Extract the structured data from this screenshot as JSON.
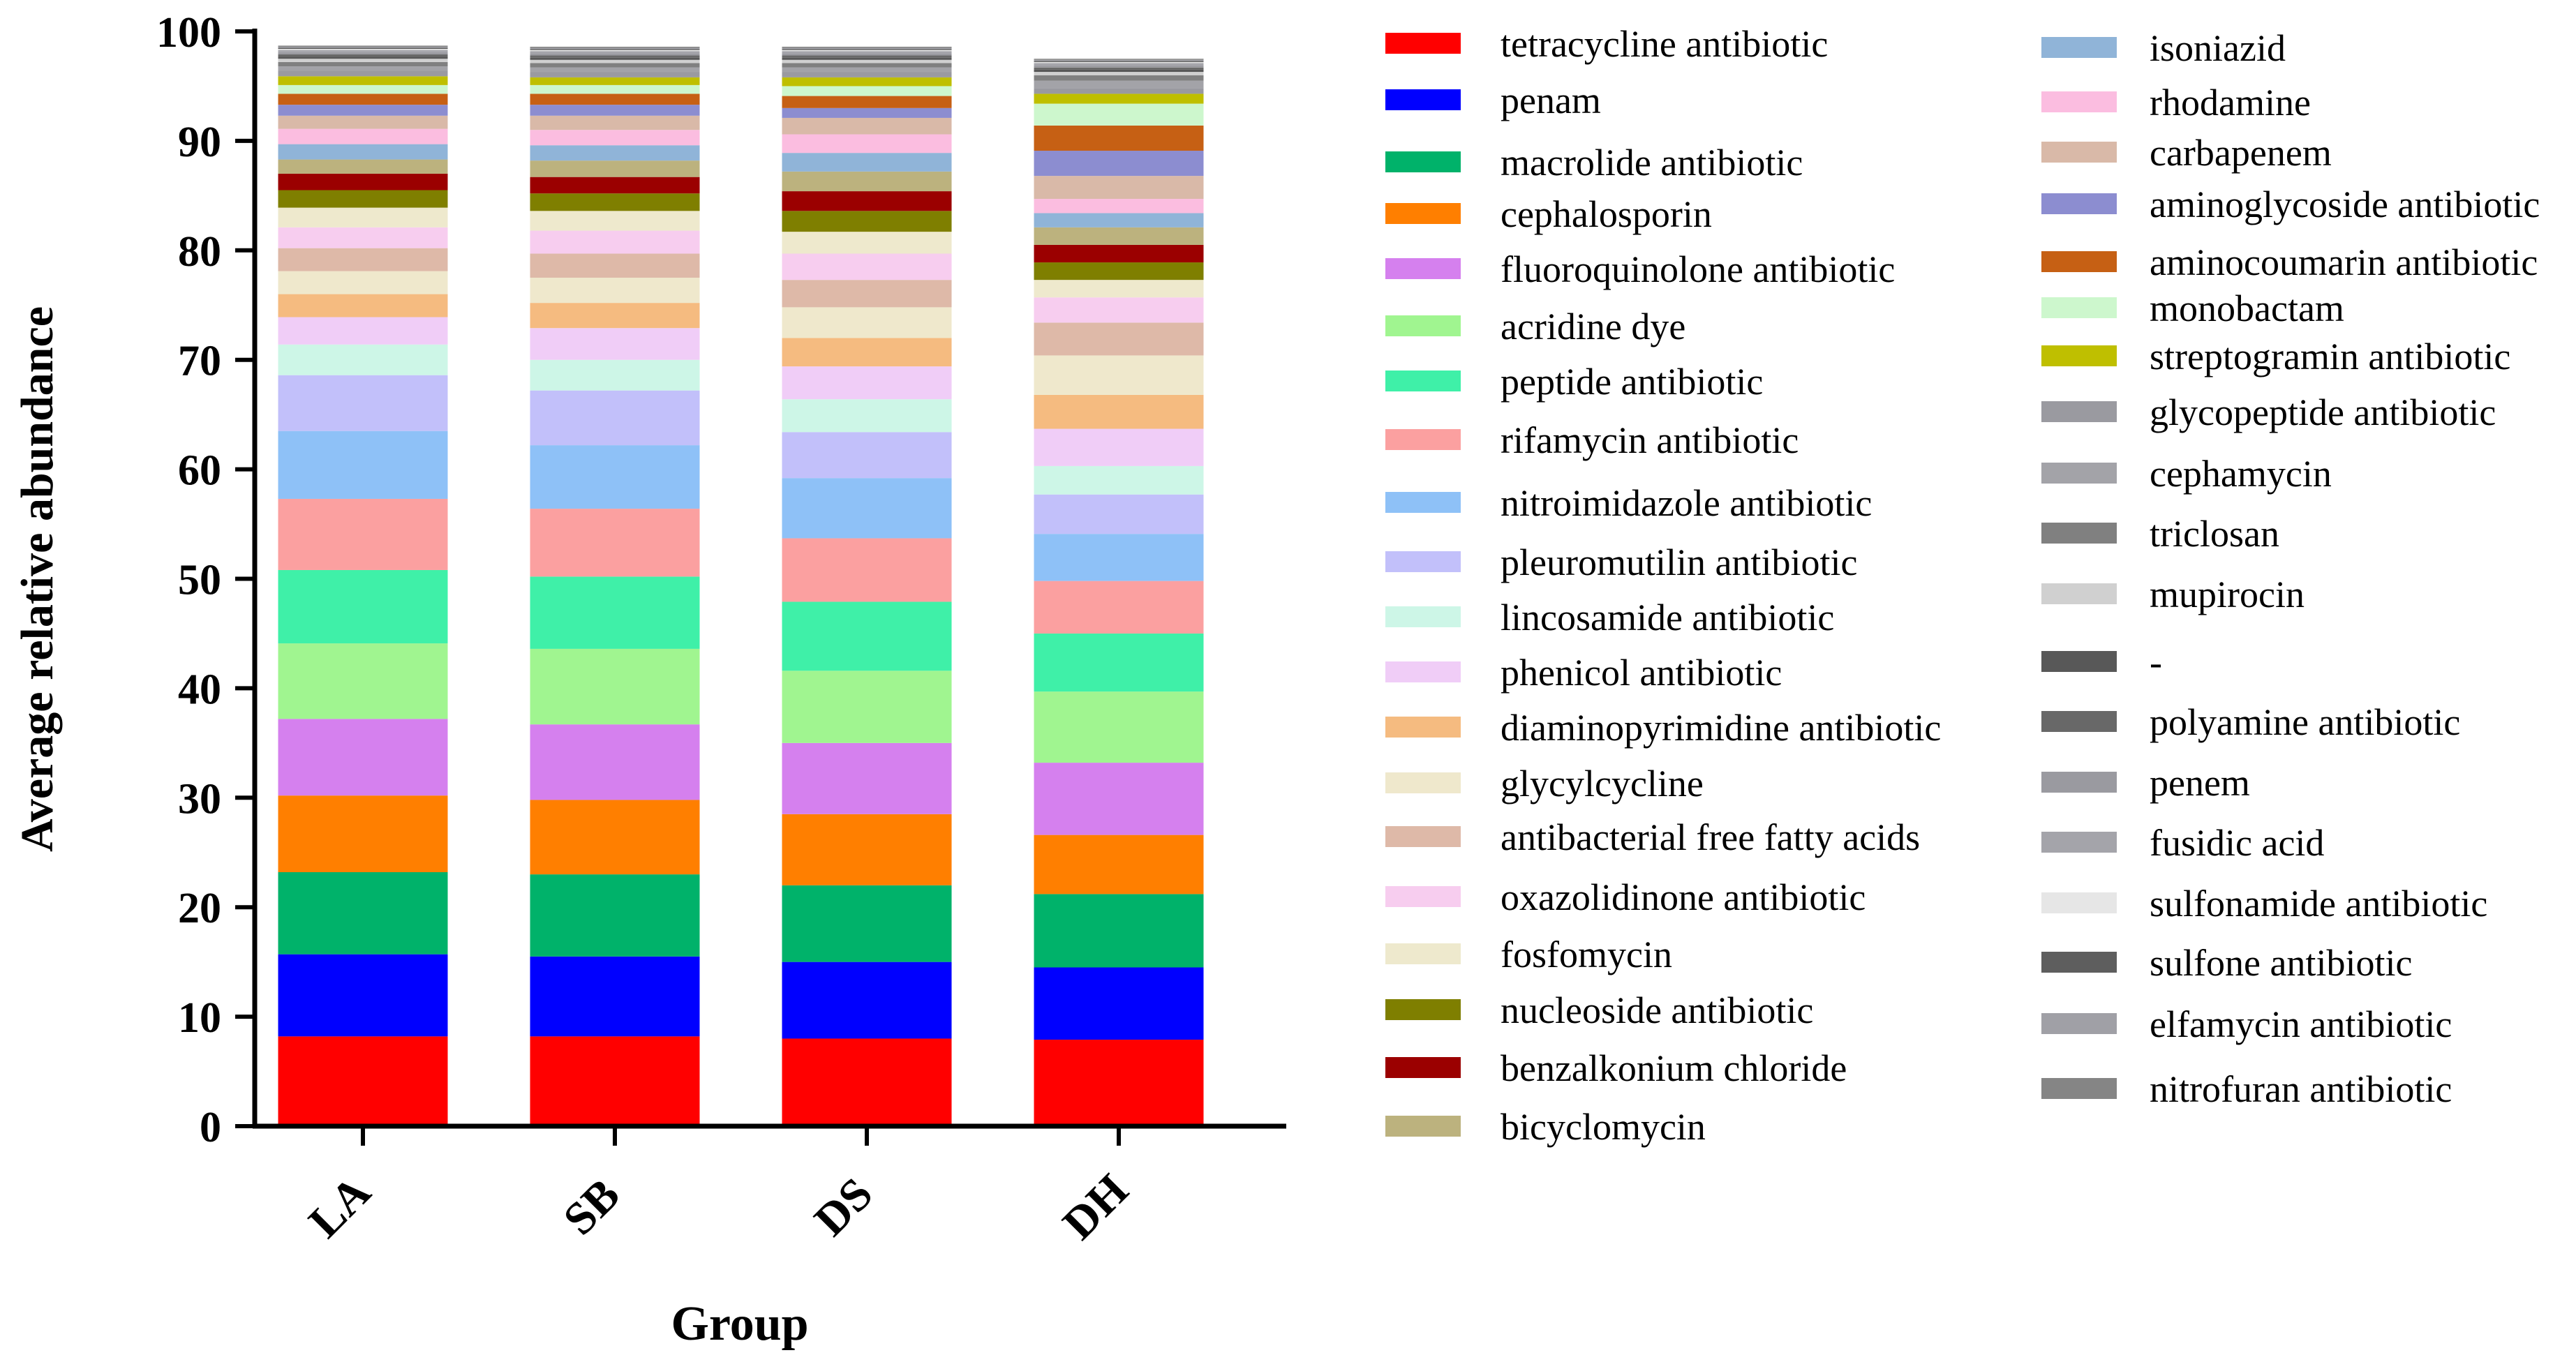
{
  "chart_data": {
    "type": "bar",
    "stacked": true,
    "xlabel": "Group",
    "ylabel": "Average relative abundance",
    "ylim": [
      0,
      100
    ],
    "yticks": [
      "0",
      "10",
      "20",
      "30",
      "40",
      "50",
      "60",
      "70",
      "80",
      "90",
      "100"
    ],
    "categories": [
      "LA",
      "SB",
      "DS",
      "DH"
    ],
    "series": [
      {
        "name": "tetracycline antibiotic",
        "color": "#ff0000",
        "values": [
          8.2,
          8.2,
          8.0,
          7.9
        ]
      },
      {
        "name": "penam",
        "color": "#0000ff",
        "values": [
          7.5,
          7.3,
          7.0,
          6.6
        ]
      },
      {
        "name": "macrolide antibiotic",
        "color": "#00b26a",
        "values": [
          7.5,
          7.5,
          7.0,
          6.7
        ]
      },
      {
        "name": "cephalosporin",
        "color": "#ff7f00",
        "values": [
          7.0,
          6.8,
          6.5,
          5.4
        ]
      },
      {
        "name": "fluoroquinolone antibiotic",
        "color": "#d580ee",
        "values": [
          7.0,
          6.9,
          6.5,
          6.6
        ]
      },
      {
        "name": "acridine dye",
        "color": "#a0f590",
        "values": [
          6.9,
          6.9,
          6.6,
          6.5
        ]
      },
      {
        "name": "peptide antibiotic",
        "color": "#3ff0a8",
        "values": [
          6.7,
          6.6,
          6.3,
          5.3
        ]
      },
      {
        "name": "rifamycin antibiotic",
        "color": "#fba0a0",
        "values": [
          6.5,
          6.2,
          5.8,
          4.8
        ]
      },
      {
        "name": "nitroimidazole antibiotic",
        "color": "#8ec1f7",
        "values": [
          6.2,
          5.8,
          5.5,
          4.3
        ]
      },
      {
        "name": "pleuromutilin antibiotic",
        "color": "#c2c0fa",
        "values": [
          5.1,
          5.0,
          4.2,
          3.6
        ]
      },
      {
        "name": "lincosamide antibiotic",
        "color": "#cdf6e7",
        "values": [
          2.8,
          2.8,
          3.0,
          2.6
        ]
      },
      {
        "name": "phenicol antibiotic",
        "color": "#f0cdf7",
        "values": [
          2.5,
          2.9,
          3.0,
          3.4
        ]
      },
      {
        "name": "diaminopyrimidine antibiotic",
        "color": "#f5bb80",
        "values": [
          2.1,
          2.3,
          2.6,
          3.1
        ]
      },
      {
        "name": "glycylcycline",
        "color": "#efe8cc",
        "values": [
          2.1,
          2.3,
          2.8,
          3.6
        ]
      },
      {
        "name": "antibacterial free fatty acids",
        "color": "#deb9a8",
        "values": [
          2.1,
          2.2,
          2.5,
          3.0
        ]
      },
      {
        "name": "oxazolidinone antibiotic",
        "color": "#f7cdef",
        "values": [
          1.9,
          2.1,
          2.4,
          2.3
        ]
      },
      {
        "name": "fosfomycin",
        "color": "#eee9cd",
        "values": [
          1.8,
          1.8,
          2.0,
          1.6
        ]
      },
      {
        "name": "nucleoside antibiotic",
        "color": "#7f7f00",
        "values": [
          1.6,
          1.6,
          1.9,
          1.6
        ]
      },
      {
        "name": "benzalkonium chloride",
        "color": "#9b0000",
        "values": [
          1.5,
          1.5,
          1.8,
          1.6
        ]
      },
      {
        "name": "bicyclomycin",
        "color": "#bcb27e",
        "values": [
          1.3,
          1.5,
          1.8,
          1.6
        ]
      },
      {
        "name": "isoniazid",
        "color": "#90b4d8",
        "values": [
          1.4,
          1.4,
          1.7,
          1.3
        ]
      },
      {
        "name": "rhodamine",
        "color": "#fbbde0",
        "values": [
          1.4,
          1.4,
          1.7,
          1.3
        ]
      },
      {
        "name": "carbapenem",
        "color": "#d9b9a8",
        "values": [
          1.2,
          1.3,
          1.5,
          2.1
        ]
      },
      {
        "name": "aminoglycoside antibiotic",
        "color": "#8c8dd0",
        "values": [
          1.0,
          1.0,
          0.9,
          2.3
        ]
      },
      {
        "name": "aminocoumarin antibiotic",
        "color": "#c66014",
        "values": [
          1.0,
          1.0,
          1.1,
          2.3
        ]
      },
      {
        "name": "monobactam",
        "color": "#cdf7cd",
        "values": [
          0.8,
          0.8,
          0.9,
          2.0
        ]
      },
      {
        "name": "streptogramin antibiotic",
        "color": "#bfbf00",
        "values": [
          0.8,
          0.7,
          0.8,
          0.9
        ]
      },
      {
        "name": "glycopeptide antibiotic",
        "color": "#9a9aa0",
        "values": [
          0.5,
          0.5,
          0.5,
          0.5
        ]
      },
      {
        "name": "cephamycin",
        "color": "#a3a3a8",
        "values": [
          0.4,
          0.4,
          0.4,
          0.7
        ]
      },
      {
        "name": "triclosan",
        "color": "#808080",
        "values": [
          0.4,
          0.4,
          0.4,
          0.5
        ]
      },
      {
        "name": "mupirocin",
        "color": "#d0d0d0",
        "values": [
          0.3,
          0.3,
          0.3,
          0.3
        ]
      },
      {
        "name": "-",
        "color": "#585858",
        "values": [
          0.2,
          0.2,
          0.2,
          0.2
        ]
      },
      {
        "name": "polyamine antibiotic",
        "color": "#686868",
        "values": [
          0.2,
          0.2,
          0.2,
          0.2
        ]
      },
      {
        "name": "penem",
        "color": "#9a9aa0",
        "values": [
          0.2,
          0.2,
          0.2,
          0.2
        ]
      },
      {
        "name": "fusidic acid",
        "color": "#a4a4aa",
        "values": [
          0.2,
          0.2,
          0.2,
          0.2
        ]
      },
      {
        "name": "sulfonamide antibiotic",
        "color": "#e6e6e6",
        "values": [
          0.1,
          0.1,
          0.1,
          0.1
        ]
      },
      {
        "name": "sulfone antibiotic",
        "color": "#5e5e5e",
        "values": [
          0.1,
          0.1,
          0.1,
          0.1
        ]
      },
      {
        "name": "elfamycin antibiotic",
        "color": "#a0a0a6",
        "values": [
          0.1,
          0.1,
          0.1,
          0.1
        ]
      },
      {
        "name": "nitrofuran antibiotic",
        "color": "#858585",
        "values": [
          0.1,
          0.1,
          0.1,
          0.1
        ]
      }
    ]
  }
}
